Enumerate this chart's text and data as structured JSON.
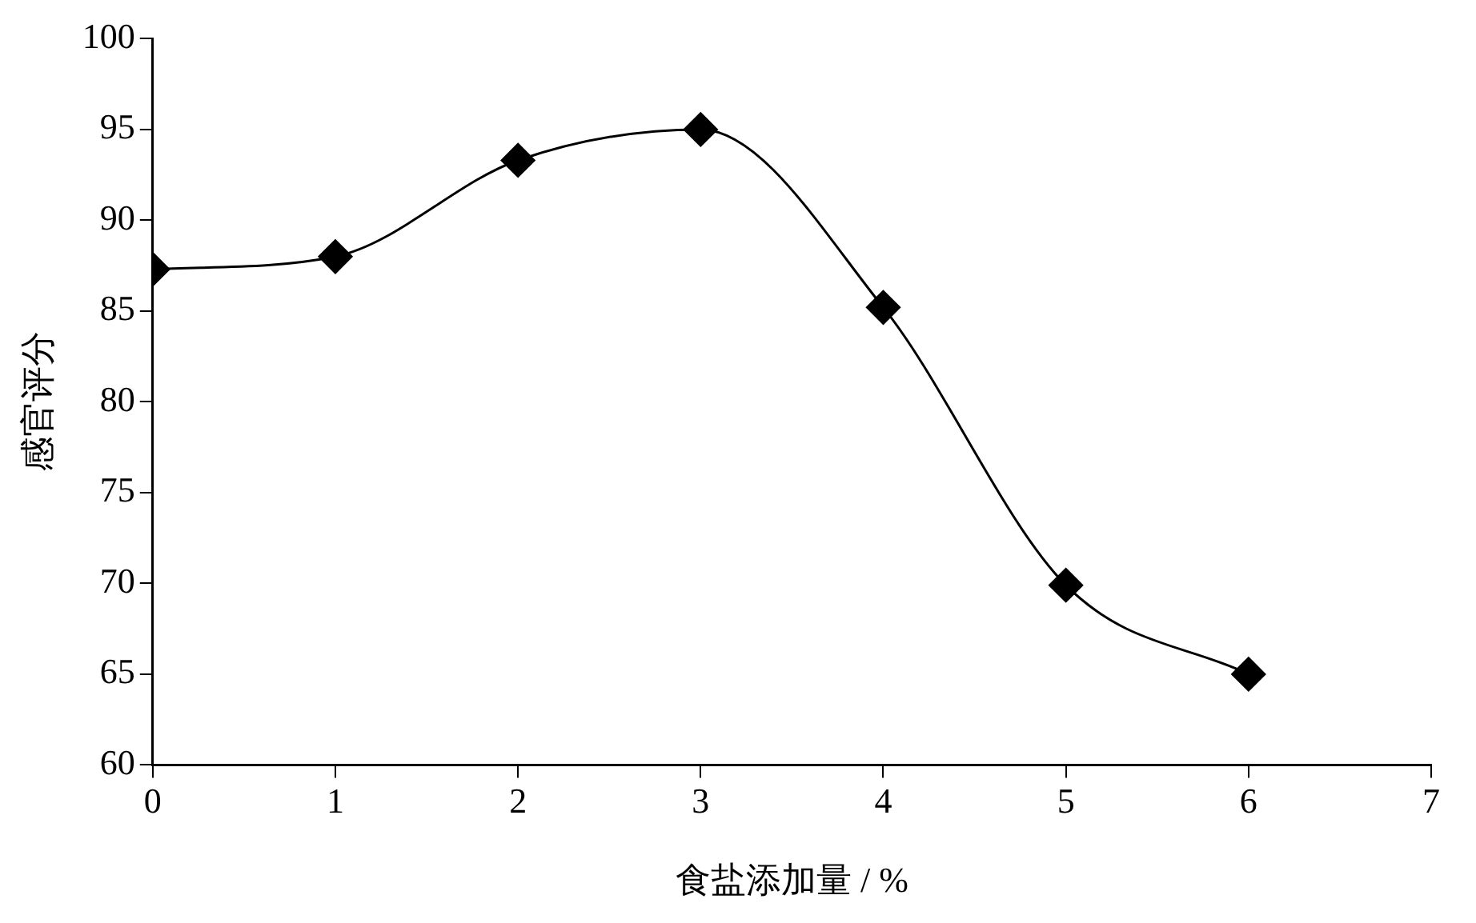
{
  "chart_data": {
    "type": "line",
    "xlabel": "食盐添加量 / %",
    "ylabel": "感官评分",
    "x": [
      0,
      1,
      2,
      3,
      4,
      5,
      6
    ],
    "series": [
      {
        "color": "#000000",
        "values": [
          87.3,
          88.0,
          93.3,
          95.0,
          85.2,
          69.9,
          65.0
        ]
      }
    ],
    "xlim": [
      0,
      7
    ],
    "xticks": [
      0,
      1,
      2,
      3,
      4,
      5,
      6,
      7
    ],
    "ylim": [
      60,
      100
    ],
    "yticks": [
      60,
      65,
      70,
      75,
      80,
      85,
      90,
      95,
      100
    ],
    "marker": "diamond",
    "line_style": "solid"
  }
}
